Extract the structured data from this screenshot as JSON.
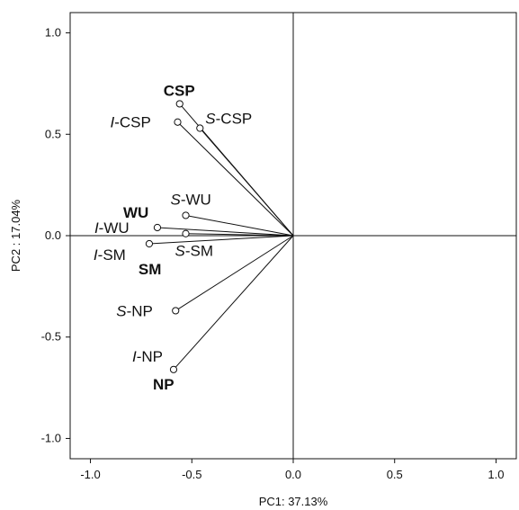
{
  "chart_data": {
    "type": "scatter",
    "subtype": "biplot-vectors",
    "title": "",
    "xlabel": "PC1: 37.13%",
    "ylabel": "PC2 : 17.04%",
    "xlim": [
      -1.1,
      1.1
    ],
    "ylim": [
      -1.1,
      1.1
    ],
    "xticks": [
      -1.0,
      -0.5,
      0.0,
      0.5,
      1.0
    ],
    "yticks": [
      -1.0,
      -0.5,
      0.0,
      0.5,
      1.0
    ],
    "xtick_labels": [
      "-1.0",
      "-0.5",
      "0.0",
      "0.5",
      "1.0"
    ],
    "ytick_labels": [
      "-1.0",
      "-0.5",
      "0.0",
      "0.5",
      "1.0"
    ],
    "grid": false,
    "reference_lines": {
      "x": 0.0,
      "y": 0.0
    },
    "points": [
      {
        "label": "CSP",
        "prefix": "",
        "suffix": "CSP",
        "bold": true,
        "x": -0.56,
        "y": 0.65
      },
      {
        "label": "I-CSP",
        "prefix": "I",
        "suffix": "-CSP",
        "bold": false,
        "x": -0.57,
        "y": 0.56
      },
      {
        "label": "S-CSP",
        "prefix": "S",
        "suffix": "-CSP",
        "bold": false,
        "x": -0.46,
        "y": 0.53
      },
      {
        "label": "WU",
        "prefix": "",
        "suffix": "WU",
        "bold": true,
        "x": -0.67,
        "y": 0.04
      },
      {
        "label": "S-WU",
        "prefix": "S",
        "suffix": "-WU",
        "bold": false,
        "x": -0.53,
        "y": 0.1
      },
      {
        "label": "I-WU",
        "prefix": "I",
        "suffix": "-WU",
        "bold": false,
        "x": -0.67,
        "y": 0.04
      },
      {
        "label": "I-SM",
        "prefix": "I",
        "suffix": "-SM",
        "bold": false,
        "x": -0.71,
        "y": -0.04
      },
      {
        "label": "SM",
        "prefix": "",
        "suffix": "SM",
        "bold": true,
        "x": -0.71,
        "y": -0.04
      },
      {
        "label": "S-SM",
        "prefix": "S",
        "suffix": "-SM",
        "bold": false,
        "x": -0.53,
        "y": 0.01
      },
      {
        "label": "S-NP",
        "prefix": "S",
        "suffix": "-NP",
        "bold": false,
        "x": -0.58,
        "y": -0.37
      },
      {
        "label": "I-NP",
        "prefix": "I",
        "suffix": "-NP",
        "bold": false,
        "x": -0.59,
        "y": -0.66
      },
      {
        "label": "NP",
        "prefix": "",
        "suffix": "NP",
        "bold": true,
        "x": -0.59,
        "y": -0.66
      }
    ]
  }
}
